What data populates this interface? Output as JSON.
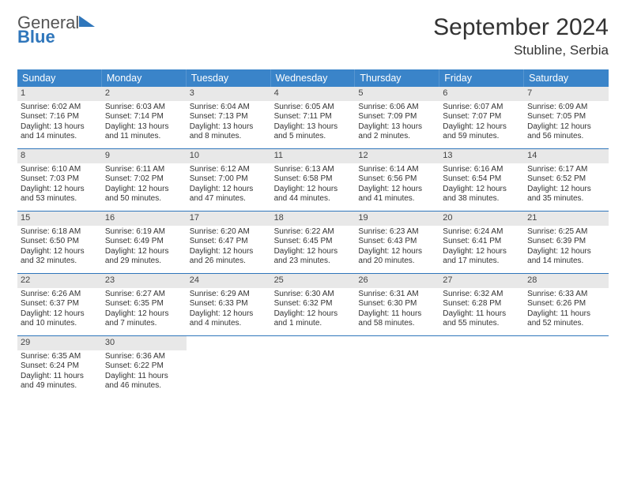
{
  "header": {
    "logo_general": "General",
    "logo_blue": "Blue",
    "month_title": "September 2024",
    "location": "Stubline, Serbia"
  },
  "colors": {
    "header_bg": "#3a84c9",
    "header_text": "#ffffff",
    "daynum_bg": "#e8e8e8",
    "row_border": "#2f76bb",
    "logo_blue": "#2f76bb",
    "body_text": "#333333"
  },
  "dow": [
    "Sunday",
    "Monday",
    "Tuesday",
    "Wednesday",
    "Thursday",
    "Friday",
    "Saturday"
  ],
  "weeks": [
    [
      {
        "n": "1",
        "sr": "Sunrise: 6:02 AM",
        "ss": "Sunset: 7:16 PM",
        "dl1": "Daylight: 13 hours",
        "dl2": "and 14 minutes."
      },
      {
        "n": "2",
        "sr": "Sunrise: 6:03 AM",
        "ss": "Sunset: 7:14 PM",
        "dl1": "Daylight: 13 hours",
        "dl2": "and 11 minutes."
      },
      {
        "n": "3",
        "sr": "Sunrise: 6:04 AM",
        "ss": "Sunset: 7:13 PM",
        "dl1": "Daylight: 13 hours",
        "dl2": "and 8 minutes."
      },
      {
        "n": "4",
        "sr": "Sunrise: 6:05 AM",
        "ss": "Sunset: 7:11 PM",
        "dl1": "Daylight: 13 hours",
        "dl2": "and 5 minutes."
      },
      {
        "n": "5",
        "sr": "Sunrise: 6:06 AM",
        "ss": "Sunset: 7:09 PM",
        "dl1": "Daylight: 13 hours",
        "dl2": "and 2 minutes."
      },
      {
        "n": "6",
        "sr": "Sunrise: 6:07 AM",
        "ss": "Sunset: 7:07 PM",
        "dl1": "Daylight: 12 hours",
        "dl2": "and 59 minutes."
      },
      {
        "n": "7",
        "sr": "Sunrise: 6:09 AM",
        "ss": "Sunset: 7:05 PM",
        "dl1": "Daylight: 12 hours",
        "dl2": "and 56 minutes."
      }
    ],
    [
      {
        "n": "8",
        "sr": "Sunrise: 6:10 AM",
        "ss": "Sunset: 7:03 PM",
        "dl1": "Daylight: 12 hours",
        "dl2": "and 53 minutes."
      },
      {
        "n": "9",
        "sr": "Sunrise: 6:11 AM",
        "ss": "Sunset: 7:02 PM",
        "dl1": "Daylight: 12 hours",
        "dl2": "and 50 minutes."
      },
      {
        "n": "10",
        "sr": "Sunrise: 6:12 AM",
        "ss": "Sunset: 7:00 PM",
        "dl1": "Daylight: 12 hours",
        "dl2": "and 47 minutes."
      },
      {
        "n": "11",
        "sr": "Sunrise: 6:13 AM",
        "ss": "Sunset: 6:58 PM",
        "dl1": "Daylight: 12 hours",
        "dl2": "and 44 minutes."
      },
      {
        "n": "12",
        "sr": "Sunrise: 6:14 AM",
        "ss": "Sunset: 6:56 PM",
        "dl1": "Daylight: 12 hours",
        "dl2": "and 41 minutes."
      },
      {
        "n": "13",
        "sr": "Sunrise: 6:16 AM",
        "ss": "Sunset: 6:54 PM",
        "dl1": "Daylight: 12 hours",
        "dl2": "and 38 minutes."
      },
      {
        "n": "14",
        "sr": "Sunrise: 6:17 AM",
        "ss": "Sunset: 6:52 PM",
        "dl1": "Daylight: 12 hours",
        "dl2": "and 35 minutes."
      }
    ],
    [
      {
        "n": "15",
        "sr": "Sunrise: 6:18 AM",
        "ss": "Sunset: 6:50 PM",
        "dl1": "Daylight: 12 hours",
        "dl2": "and 32 minutes."
      },
      {
        "n": "16",
        "sr": "Sunrise: 6:19 AM",
        "ss": "Sunset: 6:49 PM",
        "dl1": "Daylight: 12 hours",
        "dl2": "and 29 minutes."
      },
      {
        "n": "17",
        "sr": "Sunrise: 6:20 AM",
        "ss": "Sunset: 6:47 PM",
        "dl1": "Daylight: 12 hours",
        "dl2": "and 26 minutes."
      },
      {
        "n": "18",
        "sr": "Sunrise: 6:22 AM",
        "ss": "Sunset: 6:45 PM",
        "dl1": "Daylight: 12 hours",
        "dl2": "and 23 minutes."
      },
      {
        "n": "19",
        "sr": "Sunrise: 6:23 AM",
        "ss": "Sunset: 6:43 PM",
        "dl1": "Daylight: 12 hours",
        "dl2": "and 20 minutes."
      },
      {
        "n": "20",
        "sr": "Sunrise: 6:24 AM",
        "ss": "Sunset: 6:41 PM",
        "dl1": "Daylight: 12 hours",
        "dl2": "and 17 minutes."
      },
      {
        "n": "21",
        "sr": "Sunrise: 6:25 AM",
        "ss": "Sunset: 6:39 PM",
        "dl1": "Daylight: 12 hours",
        "dl2": "and 14 minutes."
      }
    ],
    [
      {
        "n": "22",
        "sr": "Sunrise: 6:26 AM",
        "ss": "Sunset: 6:37 PM",
        "dl1": "Daylight: 12 hours",
        "dl2": "and 10 minutes."
      },
      {
        "n": "23",
        "sr": "Sunrise: 6:27 AM",
        "ss": "Sunset: 6:35 PM",
        "dl1": "Daylight: 12 hours",
        "dl2": "and 7 minutes."
      },
      {
        "n": "24",
        "sr": "Sunrise: 6:29 AM",
        "ss": "Sunset: 6:33 PM",
        "dl1": "Daylight: 12 hours",
        "dl2": "and 4 minutes."
      },
      {
        "n": "25",
        "sr": "Sunrise: 6:30 AM",
        "ss": "Sunset: 6:32 PM",
        "dl1": "Daylight: 12 hours",
        "dl2": "and 1 minute."
      },
      {
        "n": "26",
        "sr": "Sunrise: 6:31 AM",
        "ss": "Sunset: 6:30 PM",
        "dl1": "Daylight: 11 hours",
        "dl2": "and 58 minutes."
      },
      {
        "n": "27",
        "sr": "Sunrise: 6:32 AM",
        "ss": "Sunset: 6:28 PM",
        "dl1": "Daylight: 11 hours",
        "dl2": "and 55 minutes."
      },
      {
        "n": "28",
        "sr": "Sunrise: 6:33 AM",
        "ss": "Sunset: 6:26 PM",
        "dl1": "Daylight: 11 hours",
        "dl2": "and 52 minutes."
      }
    ],
    [
      {
        "n": "29",
        "sr": "Sunrise: 6:35 AM",
        "ss": "Sunset: 6:24 PM",
        "dl1": "Daylight: 11 hours",
        "dl2": "and 49 minutes."
      },
      {
        "n": "30",
        "sr": "Sunrise: 6:36 AM",
        "ss": "Sunset: 6:22 PM",
        "dl1": "Daylight: 11 hours",
        "dl2": "and 46 minutes."
      },
      null,
      null,
      null,
      null,
      null
    ]
  ]
}
